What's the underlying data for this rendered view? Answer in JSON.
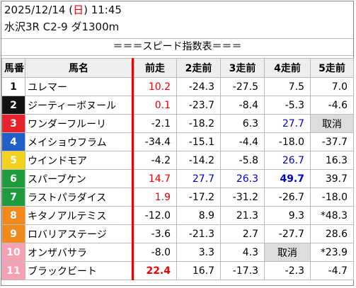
{
  "header": {
    "date": "2025/12/14 (",
    "weekday": "日",
    "time": ") 11:45",
    "race": "水沢3R C2-9 ダ1300m",
    "title": "＝＝＝スピード指数表＝＝＝"
  },
  "table": {
    "columns": [
      "馬番",
      "馬名",
      "前走",
      "2走前",
      "3走前",
      "4走前",
      "5走前"
    ],
    "rows": [
      [
        "1",
        "ユレマー",
        "10.2",
        "-24.3",
        "-27.5",
        "7.5",
        "7.0"
      ],
      [
        "2",
        "ジーティーボヌール",
        "0.1",
        "-23.7",
        "-8.4",
        "-5.3",
        "-4.6"
      ],
      [
        "3",
        "ワンダーフルーリ",
        "-2.1",
        "-18.2",
        "6.3",
        "27.7",
        "取消"
      ],
      [
        "4",
        "メイショウフラム",
        "-34.4",
        "-15.1",
        "-4.4",
        "-18.0",
        "-37.7"
      ],
      [
        "5",
        "ウインドモア",
        "-4.2",
        "-14.2",
        "-5.8",
        "26.7",
        "16.3"
      ],
      [
        "6",
        "スパーブケン",
        "14.7",
        "27.7",
        "26.3",
        "49.7",
        "39.7"
      ],
      [
        "7",
        "ラストパラダイス",
        "1.9",
        "-17.2",
        "-31.2",
        "-26.7",
        "-18.0"
      ],
      [
        "8",
        "キタノアルテミス",
        "-12.0",
        "8.9",
        "21.3",
        "9.3",
        "*48.3"
      ],
      [
        "9",
        "ロバリアステージ",
        "-3.6",
        "-21.3",
        "2.7",
        "-27.7",
        "28.6"
      ],
      [
        "10",
        "オンザバサラ",
        "-8.0",
        "3.3",
        "4.3",
        "取消",
        "*23.9"
      ],
      [
        "11",
        "ブラックビート",
        "22.4",
        "16.7",
        "-17.3",
        "-2.3",
        "-4.7"
      ]
    ]
  }
}
